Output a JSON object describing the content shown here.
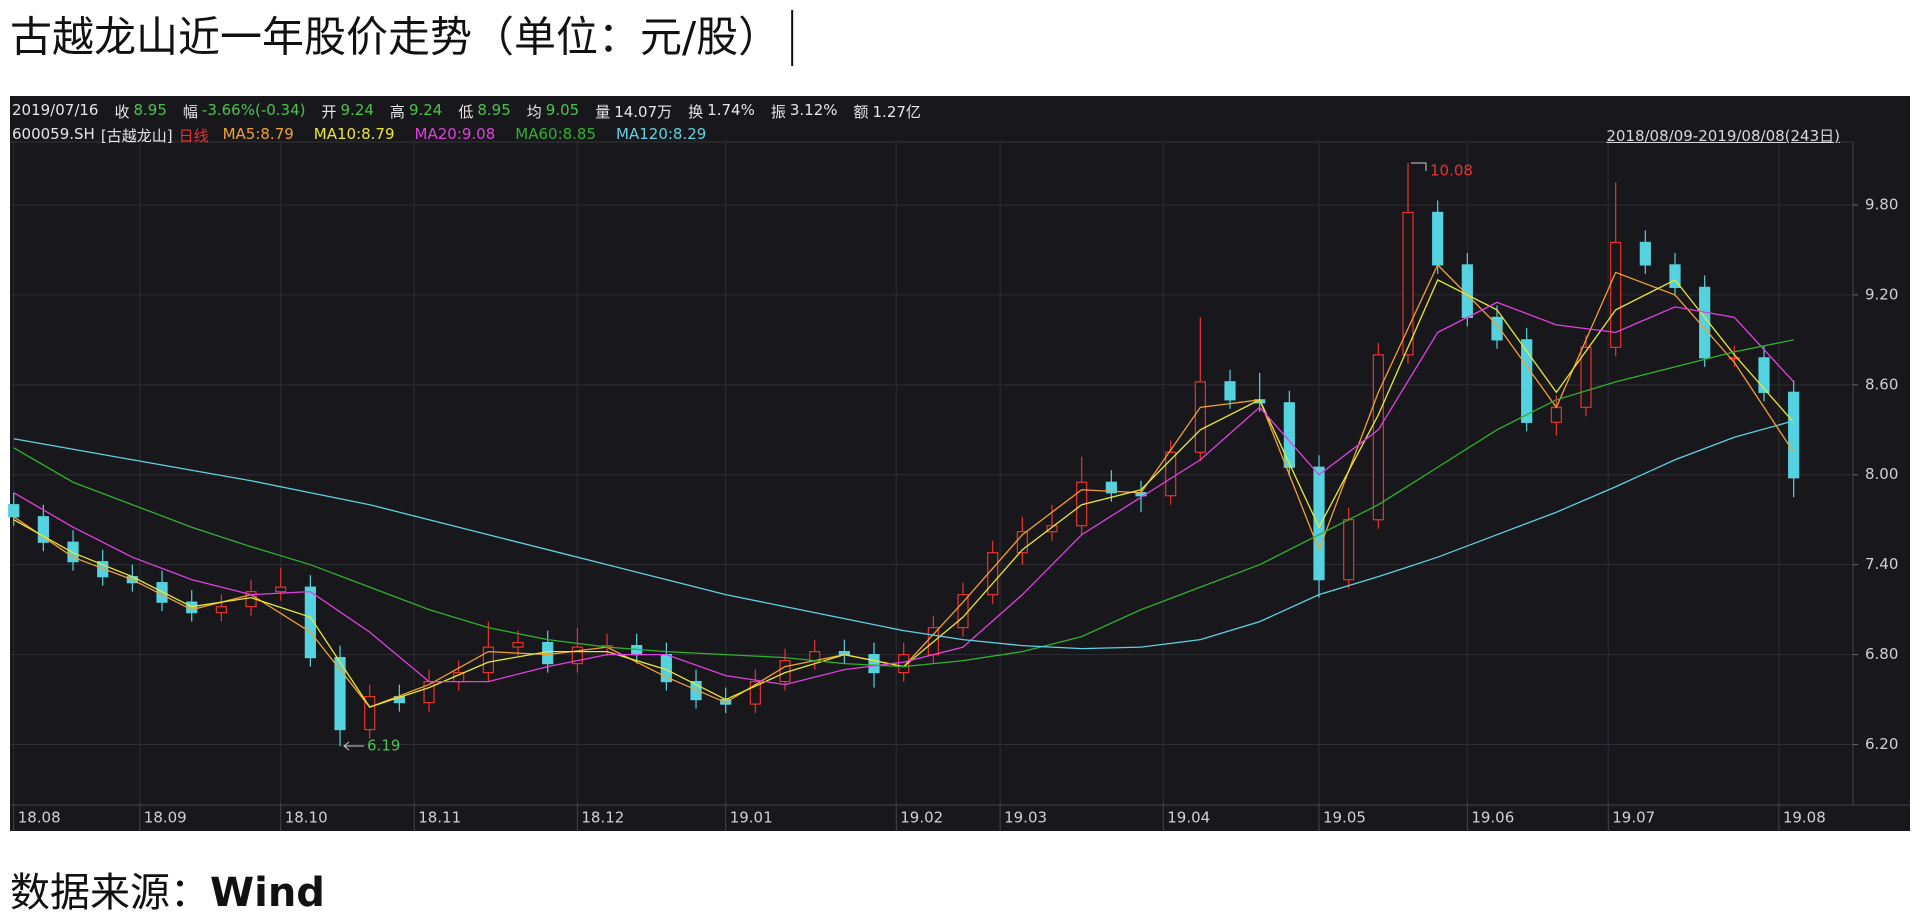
{
  "chart_data": {
    "type": "candlestick",
    "title": "古越龙山近一年股价走势（单位：元/股）",
    "info": [
      {
        "label": "2019/07/16",
        "value": ""
      },
      {
        "label": "收",
        "value": "8.95"
      },
      {
        "label": "幅",
        "value": "-3.66%(-0.34)"
      },
      {
        "label": "开",
        "value": "9.24"
      },
      {
        "label": "高",
        "value": "9.24"
      },
      {
        "label": "低",
        "value": "8.95"
      },
      {
        "label": "均",
        "value": "9.05"
      },
      {
        "label": "量",
        "value": "14.07万"
      },
      {
        "label": "换",
        "value": "1.74%"
      },
      {
        "label": "振",
        "value": "3.12%"
      },
      {
        "label": "额",
        "value": "1.27亿"
      }
    ],
    "code": "600059.SH",
    "name": "[古越龙山]",
    "period": "日线",
    "range": "2018/08/09-2019/08/08(243日)",
    "max_label": "10.08",
    "min_label": "6.19",
    "xlim": [
      -0.5,
      248
    ],
    "xticks": [
      {
        "value": 0,
        "label": "18.08"
      },
      {
        "value": 17,
        "label": "18.09"
      },
      {
        "value": 36,
        "label": "18.10"
      },
      {
        "value": 54,
        "label": "18.11"
      },
      {
        "value": 76,
        "label": "18.12"
      },
      {
        "value": 96,
        "label": "19.01"
      },
      {
        "value": 119,
        "label": "19.02"
      },
      {
        "value": 133,
        "label": "19.03"
      },
      {
        "value": 155,
        "label": "19.04"
      },
      {
        "value": 176,
        "label": "19.05"
      },
      {
        "value": 196,
        "label": "19.06"
      },
      {
        "value": 215,
        "label": "19.07"
      },
      {
        "value": 238,
        "label": "19.08"
      }
    ],
    "ylim": [
      5.81,
      10.2
    ],
    "yticks": [
      {
        "value": 6.2,
        "label": "6.20"
      },
      {
        "value": 6.8,
        "label": "6.80"
      },
      {
        "value": 7.4,
        "label": "7.40"
      },
      {
        "value": 8.0,
        "label": "8.00"
      },
      {
        "value": 8.6,
        "label": "8.60"
      },
      {
        "value": 9.2,
        "label": "9.20"
      },
      {
        "value": 9.8,
        "label": "9.80"
      }
    ],
    "grid": true,
    "up_color": "#e8322e",
    "down_color": "#54d2e0",
    "candles": {
      "x": [
        0,
        4,
        8,
        12,
        16,
        20,
        24,
        28,
        32,
        36,
        40,
        44,
        48,
        52,
        56,
        60,
        64,
        68,
        72,
        76,
        80,
        84,
        88,
        92,
        96,
        100,
        104,
        108,
        112,
        116,
        120,
        124,
        128,
        132,
        136,
        140,
        144,
        148,
        152,
        156,
        160,
        164,
        168,
        172,
        176,
        180,
        184,
        188,
        192,
        196,
        200,
        204,
        208,
        212,
        216,
        220,
        224,
        228,
        232,
        236,
        240
      ],
      "open": [
        7.8,
        7.72,
        7.55,
        7.42,
        7.32,
        7.28,
        7.15,
        7.08,
        7.12,
        7.22,
        7.25,
        6.78,
        6.3,
        6.52,
        6.48,
        6.62,
        6.68,
        6.85,
        6.88,
        6.74,
        6.85,
        6.86,
        6.8,
        6.62,
        6.5,
        6.47,
        6.62,
        6.76,
        6.82,
        6.8,
        6.68,
        6.8,
        6.98,
        7.2,
        7.48,
        7.62,
        7.66,
        7.95,
        7.88,
        7.86,
        8.15,
        8.62,
        8.5,
        8.48,
        8.05,
        7.3,
        7.7,
        8.8,
        9.75,
        9.4,
        9.05,
        8.9,
        8.35,
        8.45,
        8.85,
        9.55,
        9.4,
        9.25,
        8.78,
        8.78,
        8.55
      ],
      "high": [
        7.88,
        7.8,
        7.63,
        7.5,
        7.4,
        7.36,
        7.23,
        7.2,
        7.3,
        7.38,
        7.33,
        6.86,
        6.6,
        6.6,
        6.7,
        6.76,
        7.02,
        6.96,
        6.96,
        6.98,
        6.94,
        6.94,
        6.88,
        6.7,
        6.58,
        6.7,
        6.84,
        6.9,
        6.9,
        6.88,
        6.88,
        7.06,
        7.28,
        7.56,
        7.72,
        7.8,
        8.12,
        8.03,
        7.96,
        8.23,
        9.05,
        8.7,
        8.68,
        8.56,
        8.13,
        7.78,
        8.88,
        10.08,
        9.83,
        9.48,
        9.13,
        8.98,
        8.53,
        8.93,
        9.95,
        9.63,
        9.48,
        9.33,
        8.86,
        8.86,
        8.63
      ],
      "low": [
        7.66,
        7.49,
        7.36,
        7.26,
        7.22,
        7.09,
        7.02,
        7.02,
        7.06,
        7.16,
        6.72,
        6.19,
        6.24,
        6.42,
        6.42,
        6.56,
        6.62,
        6.79,
        6.68,
        6.68,
        6.79,
        6.74,
        6.56,
        6.44,
        6.41,
        6.41,
        6.56,
        6.7,
        6.74,
        6.58,
        6.62,
        6.74,
        6.92,
        7.14,
        7.4,
        7.56,
        7.6,
        7.82,
        7.75,
        7.8,
        8.09,
        8.44,
        8.42,
        7.99,
        7.18,
        7.24,
        7.64,
        8.74,
        9.34,
        8.99,
        8.84,
        8.29,
        8.26,
        8.39,
        8.79,
        9.34,
        9.19,
        8.72,
        8.72,
        8.49,
        7.85
      ],
      "close": [
        7.72,
        7.55,
        7.42,
        7.32,
        7.28,
        7.15,
        7.08,
        7.12,
        7.22,
        7.25,
        6.78,
        6.3,
        6.52,
        6.48,
        6.62,
        6.68,
        6.85,
        6.88,
        6.74,
        6.85,
        6.86,
        6.8,
        6.62,
        6.5,
        6.47,
        6.62,
        6.76,
        6.82,
        6.8,
        6.68,
        6.8,
        6.98,
        7.2,
        7.48,
        7.62,
        7.66,
        7.95,
        7.88,
        7.86,
        8.15,
        8.62,
        8.5,
        8.48,
        8.05,
        7.3,
        7.7,
        8.8,
        9.75,
        9.4,
        9.05,
        8.9,
        8.35,
        8.45,
        8.85,
        9.55,
        9.4,
        9.25,
        8.78,
        8.78,
        8.55,
        7.98
      ]
    },
    "ma_x": [
      0,
      8,
      16,
      24,
      32,
      40,
      48,
      56,
      64,
      72,
      80,
      88,
      96,
      104,
      112,
      120,
      128,
      136,
      144,
      152,
      160,
      168,
      176,
      184,
      192,
      200,
      208,
      216,
      224,
      232,
      240
    ],
    "series": [
      {
        "name": "MA5:8.79",
        "color": "#f0a030",
        "values": [
          7.72,
          7.45,
          7.3,
          7.1,
          7.2,
          6.95,
          6.45,
          6.6,
          6.82,
          6.8,
          6.85,
          6.65,
          6.48,
          6.72,
          6.8,
          6.72,
          7.15,
          7.6,
          7.9,
          7.88,
          8.45,
          8.5,
          7.5,
          8.55,
          9.4,
          9.0,
          8.45,
          9.35,
          9.2,
          8.75,
          8.15
        ]
      },
      {
        "name": "MA10:8.79",
        "color": "#e8e830",
        "values": [
          7.7,
          7.48,
          7.32,
          7.12,
          7.18,
          7.05,
          6.45,
          6.58,
          6.75,
          6.82,
          6.82,
          6.7,
          6.5,
          6.68,
          6.8,
          6.72,
          7.05,
          7.5,
          7.8,
          7.9,
          8.3,
          8.5,
          7.65,
          8.4,
          9.3,
          9.1,
          8.55,
          9.1,
          9.3,
          8.8,
          8.35
        ]
      },
      {
        "name": "MA20:9.08",
        "color": "#e040e0",
        "values": [
          7.88,
          7.65,
          7.45,
          7.3,
          7.2,
          7.22,
          6.95,
          6.62,
          6.62,
          6.72,
          6.8,
          6.8,
          6.66,
          6.6,
          6.7,
          6.75,
          6.85,
          7.2,
          7.6,
          7.85,
          8.1,
          8.45,
          8.0,
          8.3,
          8.95,
          9.15,
          9.0,
          8.95,
          9.12,
          9.05,
          8.62
        ]
      },
      {
        "name": "MA60:8.85",
        "color": "#30b030",
        "values": [
          8.18,
          7.95,
          7.8,
          7.65,
          7.52,
          7.4,
          7.25,
          7.1,
          6.98,
          6.9,
          6.85,
          6.82,
          6.8,
          6.78,
          6.74,
          6.72,
          6.76,
          6.82,
          6.92,
          7.1,
          7.25,
          7.4,
          7.6,
          7.8,
          8.05,
          8.3,
          8.5,
          8.62,
          8.72,
          8.82,
          8.9
        ]
      },
      {
        "name": "MA120:8.29",
        "color": "#60d0e0",
        "values": [
          8.24,
          8.17,
          8.1,
          8.03,
          7.96,
          7.88,
          7.8,
          7.7,
          7.6,
          7.5,
          7.4,
          7.3,
          7.2,
          7.12,
          7.04,
          6.96,
          6.9,
          6.86,
          6.84,
          6.85,
          6.9,
          7.02,
          7.2,
          7.32,
          7.45,
          7.6,
          7.75,
          7.92,
          8.1,
          8.25,
          8.36
        ]
      }
    ]
  },
  "source_label": "数据来源：",
  "source": "Wind"
}
